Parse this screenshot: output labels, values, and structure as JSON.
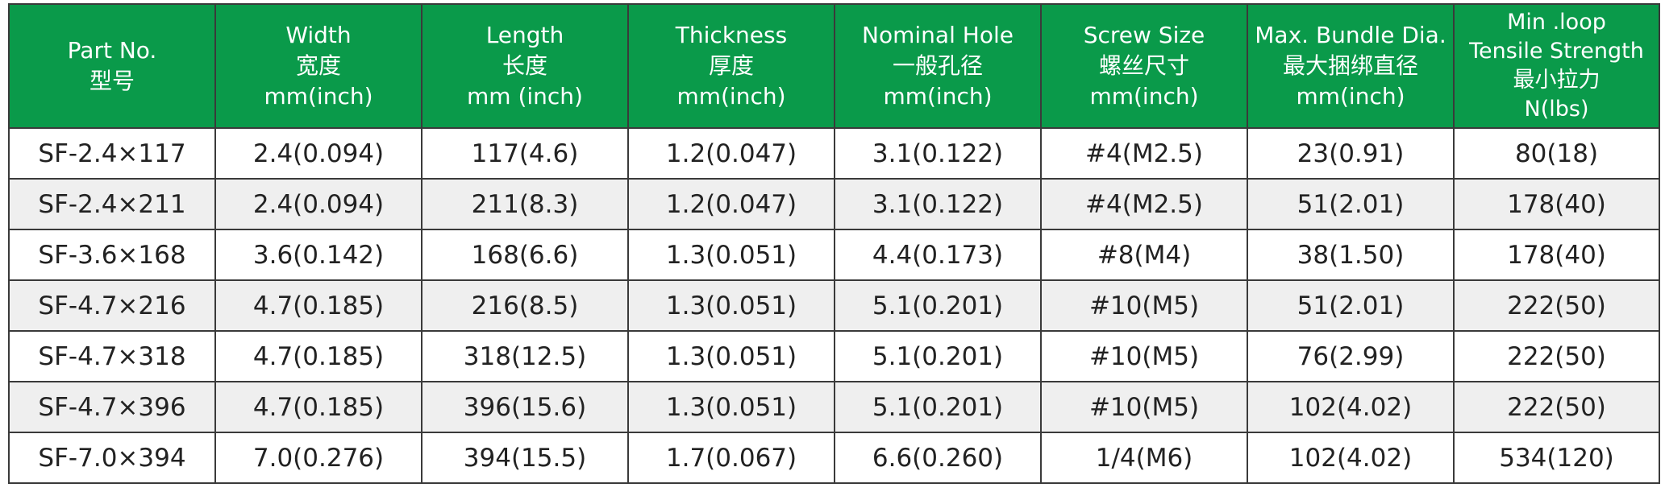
{
  "table": {
    "headers": [
      {
        "lines": [
          "Part No.",
          "型号"
        ]
      },
      {
        "lines": [
          "Width",
          "宽度",
          "mm(inch)"
        ]
      },
      {
        "lines": [
          "Length",
          "长度",
          "mm (inch)"
        ]
      },
      {
        "lines": [
          "Thickness",
          "厚度",
          "mm(inch)"
        ]
      },
      {
        "lines": [
          "Nominal Hole",
          "一般孔径",
          "mm(inch)"
        ]
      },
      {
        "lines": [
          "Screw Size",
          "螺丝尺寸",
          "mm(inch)"
        ]
      },
      {
        "lines": [
          "Max. Bundle Dia.",
          "最大捆绑直径",
          "mm(inch)"
        ]
      },
      {
        "lines": [
          "Min .loop",
          "Tensile Strength",
          "最小拉力",
          "N(lbs)"
        ]
      }
    ],
    "rows": [
      [
        "SF-2.4×117",
        "2.4(0.094)",
        "117(4.6)",
        "1.2(0.047)",
        "3.1(0.122)",
        "#4(M2.5)",
        "23(0.91)",
        "80(18)"
      ],
      [
        "SF-2.4×211",
        "2.4(0.094)",
        "211(8.3)",
        "1.2(0.047)",
        "3.1(0.122)",
        "#4(M2.5)",
        "51(2.01)",
        "178(40)"
      ],
      [
        "SF-3.6×168",
        "3.6(0.142)",
        "168(6.6)",
        "1.3(0.051)",
        "4.4(0.173)",
        "#8(M4)",
        "38(1.50)",
        "178(40)"
      ],
      [
        "SF-4.7×216",
        "4.7(0.185)",
        "216(8.5)",
        "1.3(0.051)",
        "5.1(0.201)",
        "#10(M5)",
        "51(2.01)",
        "222(50)"
      ],
      [
        "SF-4.7×318",
        "4.7(0.185)",
        "318(12.5)",
        "1.3(0.051)",
        "5.1(0.201)",
        "#10(M5)",
        "76(2.99)",
        "222(50)"
      ],
      [
        "SF-4.7×396",
        "4.7(0.185)",
        "396(15.6)",
        "1.3(0.051)",
        "5.1(0.201)",
        "#10(M5)",
        "102(4.02)",
        "222(50)"
      ],
      [
        "SF-7.0×394",
        "7.0(0.276)",
        "394(15.5)",
        "1.7(0.067)",
        "6.6(0.260)",
        "1/4(M6)",
        "102(4.02)",
        "534(120)"
      ]
    ]
  }
}
